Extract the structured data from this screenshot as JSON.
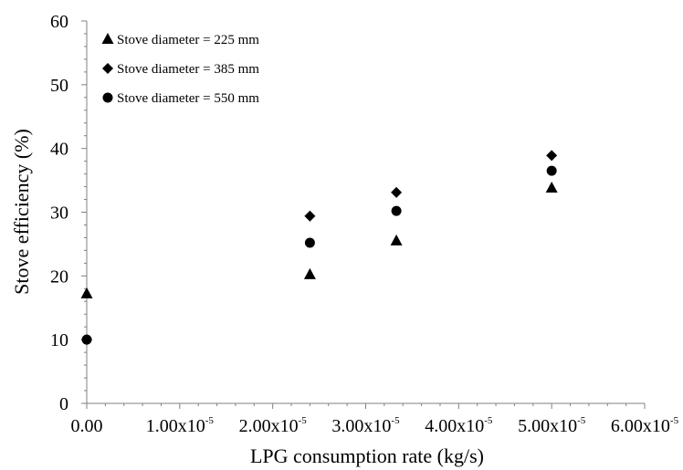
{
  "chart_data": {
    "type": "scatter",
    "xlabel": "LPG consumption rate (kg/s)",
    "ylabel": "Stove efficiency (%)",
    "xlim": [
      0,
      6e-05
    ],
    "ylim": [
      0,
      60
    ],
    "x_ticks": [
      {
        "value": 0,
        "mantissa": "0.00",
        "exp": ""
      },
      {
        "value": 1e-05,
        "mantissa": "1.00x10",
        "exp": "-5"
      },
      {
        "value": 2e-05,
        "mantissa": "2.00x10",
        "exp": "-5"
      },
      {
        "value": 3e-05,
        "mantissa": "3.00x10",
        "exp": "-5"
      },
      {
        "value": 4e-05,
        "mantissa": "4.00x10",
        "exp": "-5"
      },
      {
        "value": 5e-05,
        "mantissa": "5.00x10",
        "exp": "-5"
      },
      {
        "value": 6e-05,
        "mantissa": "6.00x10",
        "exp": "-5"
      }
    ],
    "y_ticks": [
      "0",
      "10",
      "20",
      "30",
      "40",
      "50",
      "60"
    ],
    "grid": false,
    "legend_position": "top-left",
    "series": [
      {
        "name": "Stove diameter = 225 mm",
        "marker": "triangle",
        "color": "#000000",
        "points": [
          {
            "x": 0,
            "y": 17.2
          },
          {
            "x": 2.4e-05,
            "y": 20.2
          },
          {
            "x": 3.33e-05,
            "y": 25.5
          },
          {
            "x": 5e-05,
            "y": 33.8
          }
        ]
      },
      {
        "name": "Stove diameter = 385 mm",
        "marker": "diamond",
        "color": "#000000",
        "points": [
          {
            "x": 0,
            "y": 10.0
          },
          {
            "x": 2.4e-05,
            "y": 29.4
          },
          {
            "x": 3.33e-05,
            "y": 33.1
          },
          {
            "x": 5e-05,
            "y": 38.9
          }
        ]
      },
      {
        "name": "Stove diameter = 550 mm",
        "marker": "circle",
        "color": "#000000",
        "points": [
          {
            "x": 0,
            "y": 10.0
          },
          {
            "x": 2.4e-05,
            "y": 25.2
          },
          {
            "x": 3.33e-05,
            "y": 30.2
          },
          {
            "x": 5e-05,
            "y": 36.5
          }
        ]
      }
    ]
  }
}
